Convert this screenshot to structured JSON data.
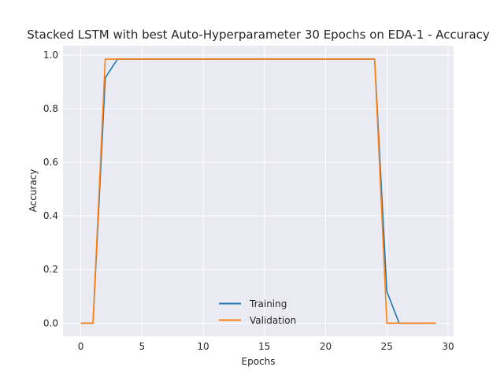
{
  "chart_data": {
    "type": "line",
    "title": "Stacked LSTM with best Auto-Hyperparameter 30 Epochs on EDA-1 - Accuracy",
    "xlabel": "Epochs",
    "ylabel": "Accuracy",
    "xlim": [
      -1.45,
      30.45
    ],
    "ylim": [
      -0.049,
      1.035
    ],
    "xticks": [
      0,
      5,
      10,
      15,
      20,
      25,
      30
    ],
    "yticks": [
      0.0,
      0.2,
      0.4,
      0.6,
      0.8,
      1.0
    ],
    "xtick_labels": [
      "0",
      "5",
      "10",
      "15",
      "20",
      "25",
      "30"
    ],
    "ytick_labels": [
      "0.0",
      "0.2",
      "0.4",
      "0.6",
      "0.8",
      "1.0"
    ],
    "grid": true,
    "legend_position": "lower center",
    "x": [
      0,
      1,
      2,
      3,
      4,
      5,
      6,
      7,
      8,
      9,
      10,
      11,
      12,
      13,
      14,
      15,
      16,
      17,
      18,
      19,
      20,
      21,
      22,
      23,
      24,
      25,
      26,
      27,
      28,
      29
    ],
    "series": [
      {
        "name": "Training",
        "color": "#1f77b4",
        "values": [
          0.0,
          0.0,
          0.915,
          0.985,
          0.985,
          0.985,
          0.985,
          0.985,
          0.985,
          0.985,
          0.985,
          0.985,
          0.985,
          0.985,
          0.985,
          0.985,
          0.985,
          0.985,
          0.985,
          0.985,
          0.985,
          0.985,
          0.985,
          0.985,
          0.985,
          0.118,
          0.0,
          0.0,
          0.0,
          0.0
        ]
      },
      {
        "name": "Validation",
        "color": "#ff7f0e",
        "values": [
          0.0,
          0.0,
          0.985,
          0.985,
          0.985,
          0.985,
          0.985,
          0.985,
          0.985,
          0.985,
          0.985,
          0.985,
          0.985,
          0.985,
          0.985,
          0.985,
          0.985,
          0.985,
          0.985,
          0.985,
          0.985,
          0.985,
          0.985,
          0.985,
          0.985,
          0.0,
          0.0,
          0.0,
          0.0,
          0.0
        ]
      }
    ]
  }
}
